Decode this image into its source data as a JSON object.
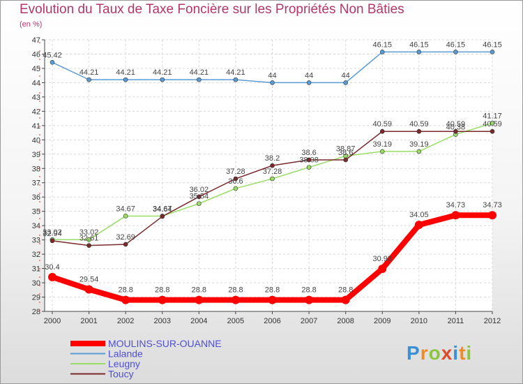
{
  "title": "Evolution du Taux de Taxe Foncière sur les Propriétés Non Bâties",
  "subtitle": "(en %)",
  "logo": {
    "text": "Proxiti"
  },
  "chart_data": {
    "type": "line",
    "x": [
      "2000",
      "2001",
      "2002",
      "2003",
      "2004",
      "2005",
      "2006",
      "2007",
      "2008",
      "2009",
      "2010",
      "2011",
      "2012"
    ],
    "ylim": [
      28,
      47
    ],
    "yticks": [
      28,
      29,
      30,
      31,
      32,
      33,
      34,
      35,
      36,
      37,
      38,
      39,
      40,
      41,
      42,
      43,
      44,
      45,
      46,
      47
    ],
    "grid": true,
    "legend_position": "bottom-left",
    "series": [
      {
        "name": "MOULINS-SUR-OUANNE",
        "color": "#ff0000",
        "values": [
          30.4,
          29.54,
          28.8,
          28.8,
          28.8,
          28.8,
          28.8,
          28.8,
          28.8,
          30.98,
          34.05,
          34.73,
          34.73
        ],
        "labels": [
          "30.4",
          "29.54",
          "28.8",
          "28.8",
          "28.8",
          "28.8",
          "28.8",
          "28.8",
          "28.8",
          "30.98",
          "34.05",
          "34.73",
          "34.73"
        ]
      },
      {
        "name": "Lalande",
        "color": "#5b9bd5",
        "values": [
          45.42,
          44.21,
          44.21,
          44.21,
          44.21,
          44.21,
          44,
          44,
          44,
          46.15,
          46.15,
          46.15,
          46.15
        ],
        "labels": [
          "45.42",
          "44.21",
          "44.21",
          "44.21",
          "44.21",
          "44.21",
          "44",
          "44",
          "44",
          "46.15",
          "46.15",
          "46.15",
          "46.15"
        ]
      },
      {
        "name": "Leugny",
        "color": "#99dd66",
        "values": [
          33.02,
          33.02,
          34.67,
          34.67,
          35.54,
          36.6,
          37.28,
          38.08,
          38.87,
          39.19,
          39.19,
          40.38,
          41.17
        ],
        "labels": [
          "33.02",
          "33.02",
          "34.67",
          "34.67",
          "35.54",
          "36.6",
          "37.28",
          "38.08",
          "38.87",
          "39.19",
          "39.19",
          "40.38",
          "41.17"
        ]
      },
      {
        "name": "Toucy",
        "color": "#7a2a2a",
        "values": [
          32.94,
          32.61,
          32.69,
          34.64,
          36.02,
          37.28,
          38.2,
          38.6,
          38.6,
          40.59,
          40.59,
          40.59,
          40.59
        ],
        "labels": [
          "32.94",
          "32.61",
          "32.69",
          "34.64",
          "36.02",
          "37.28",
          "38.2",
          "38.6",
          "38.6",
          "40.59",
          "40.59",
          "40.59",
          "40.59"
        ]
      }
    ]
  }
}
